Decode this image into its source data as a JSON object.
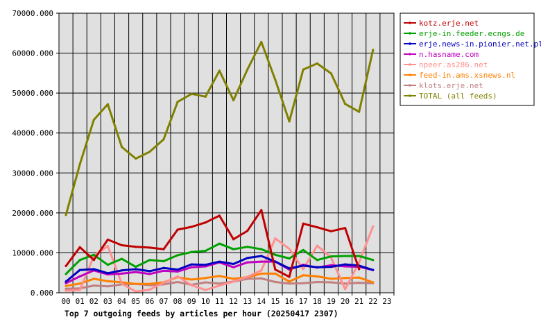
{
  "chart_data": {
    "type": "line",
    "title": "Top 7 outgoing feeds by articles per hour (20250417 2307)",
    "xlabel": "",
    "ylabel": "",
    "ylim": [
      0,
      70000
    ],
    "grid": true,
    "legend_position": "top-right",
    "categories": [
      "00",
      "01",
      "02",
      "03",
      "04",
      "05",
      "06",
      "07",
      "08",
      "09",
      "10",
      "11",
      "12",
      "13",
      "14",
      "15",
      "16",
      "17",
      "18",
      "19",
      "20",
      "21",
      "22",
      "23"
    ],
    "y_ticks": [
      "0.000",
      "10000.000",
      "20000.000",
      "30000.000",
      "40000.000",
      "50000.000",
      "60000.000",
      "70000.000"
    ],
    "series": [
      {
        "name": "kotz.erje.net",
        "color": "#c00000",
        "values": [
          6700,
          11400,
          8200,
          13300,
          11900,
          11500,
          11300,
          10900,
          15800,
          16500,
          17600,
          19300,
          13400,
          15500,
          20700,
          5800,
          4000,
          17300,
          16400,
          15400,
          16200,
          5900,
          null,
          null
        ]
      },
      {
        "name": "erje-in.feeder.ecngs.de",
        "color": "#00a000",
        "values": [
          4700,
          8200,
          9500,
          7000,
          8500,
          6500,
          8200,
          7900,
          9400,
          10200,
          10500,
          12300,
          10900,
          11500,
          10900,
          9500,
          8600,
          10700,
          8200,
          9100,
          9200,
          9200,
          8200,
          null
        ]
      },
      {
        "name": "erje.news-in.pionier.net.pl",
        "color": "#0000c0",
        "values": [
          2800,
          5700,
          5900,
          4900,
          5600,
          5900,
          5400,
          6200,
          5800,
          7100,
          7000,
          7800,
          7200,
          8700,
          9200,
          7800,
          6100,
          6800,
          6400,
          6500,
          7100,
          6800,
          5700,
          null
        ]
      },
      {
        "name": "n.hasname.com",
        "color": "#c000c0",
        "values": [
          2400,
          4100,
          5600,
          4600,
          4800,
          5200,
          4700,
          5500,
          5300,
          6400,
          6600,
          7600,
          6400,
          7600,
          7800,
          7800,
          5800,
          7000,
          6300,
          6900,
          6600,
          6500,
          5700,
          null
        ]
      },
      {
        "name": "npeer.as286.net",
        "color": "#ff9090",
        "values": [
          500,
          700,
          9200,
          11700,
          2300,
          300,
          800,
          2500,
          4100,
          1900,
          700,
          1800,
          2800,
          4000,
          5600,
          13600,
          11000,
          5900,
          11800,
          8800,
          900,
          7600,
          16600,
          null
        ]
      },
      {
        "name": "feed-in.ams.xsnews.nl",
        "color": "#ff8000",
        "values": [
          1700,
          2300,
          3500,
          2900,
          2600,
          2200,
          2200,
          2600,
          3900,
          3300,
          3700,
          4200,
          3500,
          3900,
          4800,
          4800,
          2800,
          4400,
          4100,
          3500,
          3700,
          3800,
          2600,
          null
        ]
      },
      {
        "name": "klots.erje.net",
        "color": "#c08080",
        "values": [
          1000,
          1100,
          1800,
          1600,
          2100,
          2200,
          1900,
          2100,
          2700,
          2000,
          2600,
          2300,
          2800,
          3500,
          3600,
          2700,
          2300,
          2400,
          2700,
          2600,
          2300,
          2500,
          2400,
          null
        ]
      },
      {
        "name": "TOTAL (all feeds)",
        "color": "#808000",
        "values": [
          19500,
          32200,
          43300,
          47200,
          36500,
          33600,
          35300,
          38400,
          47800,
          49800,
          49100,
          55600,
          48200,
          55900,
          62800,
          53300,
          42900,
          55900,
          57400,
          54900,
          47300,
          45300,
          60800,
          null
        ]
      }
    ]
  }
}
